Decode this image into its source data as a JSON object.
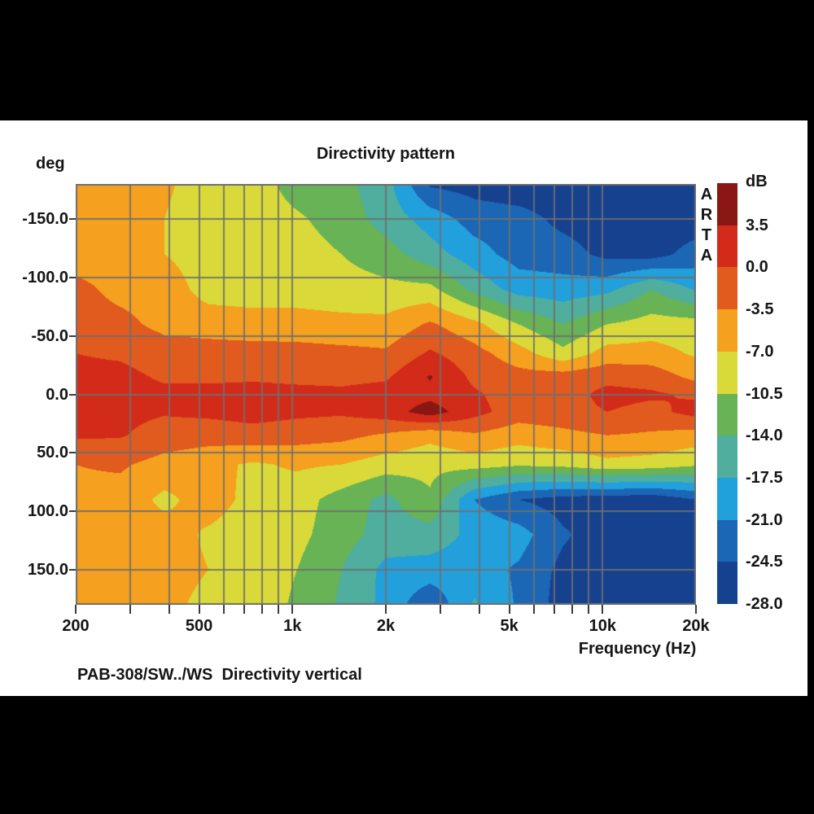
{
  "title": "Directivity pattern",
  "caption": "PAB-308/SW../WS  Directivity vertical",
  "branding": {
    "watermark": "ARTA",
    "watermark_letters": [
      "A",
      "R",
      "T",
      "A"
    ]
  },
  "y_axis": {
    "unit_label": "deg",
    "ticks_deg": [
      -150,
      -100,
      -50,
      0,
      50,
      100,
      150
    ],
    "tick_labels": [
      "-150.0",
      "-100.0",
      "-50.0",
      "0.0",
      "50.0",
      "100.0",
      "150.0"
    ],
    "gridline_degs": [
      -150,
      -100,
      -50,
      0,
      50,
      100,
      150
    ],
    "range_deg": [
      -180,
      180
    ]
  },
  "x_axis": {
    "label": "Frequency (Hz)",
    "tick_labels": [
      "200",
      "500",
      "1k",
      "2k",
      "5k",
      "10k",
      "20k"
    ],
    "tick_freqs": [
      200,
      500,
      1000,
      2000,
      5000,
      10000,
      20000
    ],
    "gridline_freqs": [
      200,
      300,
      400,
      500,
      600,
      700,
      800,
      900,
      1000,
      2000,
      3000,
      4000,
      5000,
      6000,
      7000,
      8000,
      9000,
      10000,
      20000
    ],
    "scale": "log",
    "range_hz": [
      200,
      20000
    ]
  },
  "colorbar": {
    "unit_label": "dB",
    "labels": [
      "3.5",
      "0.0",
      "-3.5",
      "-7.0",
      "-10.5",
      "-14.0",
      "-17.5",
      "-21.0",
      "-24.5",
      "-28.0"
    ],
    "step_db": 3.5
  },
  "colors": {
    "background": "#ffffff",
    "frame": "#000000",
    "grid": "#6f6f6f",
    "tick": "#3c3c3c",
    "text": "#151515"
  },
  "chart_data": {
    "type": "heatmap",
    "title": "Directivity pattern",
    "xlabel": "Frequency (Hz)",
    "ylabel": "deg",
    "x_scale": "log",
    "xlim_hz": [
      200,
      20000
    ],
    "ylim_deg": [
      -180,
      180
    ],
    "levels_db": [
      -28,
      -24.5,
      -21,
      -17.5,
      -14,
      -10.5,
      -7,
      -3.5,
      0,
      3.5
    ],
    "palette": [
      "#15418f",
      "#1b66b5",
      "#22a0dc",
      "#4fae9d",
      "#67b356",
      "#d9da3a",
      "#f5a01f",
      "#e15a1e",
      "#d32b1a",
      "#8a1713"
    ],
    "x_freq_hz": [
      200,
      278,
      386,
      536,
      745,
      1035,
      1438,
      2000,
      2776,
      3857,
      5360,
      7447,
      10347,
      14378,
      20000
    ],
    "y_angle_deg": [
      -180,
      -150,
      -120,
      -90,
      -60,
      -35,
      -15,
      0,
      15,
      35,
      60,
      90,
      120,
      150,
      180
    ],
    "values_db": [
      [
        -5,
        -5,
        -6.5,
        -8.5,
        -8.75,
        -12,
        -13,
        -16,
        -25,
        -26,
        -27,
        -27,
        -27,
        -27,
        -27
      ],
      [
        -5,
        -5,
        -7,
        -8.75,
        -8.75,
        -10,
        -12,
        -15.5,
        -19,
        -22.5,
        -23,
        -25.5,
        -26.5,
        -26.5,
        -26.5
      ],
      [
        -5.2,
        -5.2,
        -7,
        -8.75,
        -8.75,
        -9,
        -10.5,
        -12.5,
        -16,
        -19.5,
        -22.5,
        -23,
        -25.5,
        -26,
        -23
      ],
      [
        -2.5,
        -4.5,
        -5,
        -8.5,
        -8.75,
        -8.75,
        -9,
        -9.5,
        -9.5,
        -15,
        -19,
        -19.5,
        -18.5,
        -14,
        -18
      ],
      [
        -2,
        -2.5,
        -4.5,
        -5,
        -5.5,
        -5.5,
        -6,
        -6,
        -3,
        -6,
        -10.5,
        -14,
        -10.5,
        -9,
        -9
      ],
      [
        0,
        -0.5,
        -1.8,
        -2,
        -2,
        -2.2,
        -2.5,
        -3,
        0.5,
        -2.2,
        -5.5,
        -9.5,
        -5.5,
        -5.5,
        -7.5
      ],
      [
        1,
        1,
        -0.5,
        -0.8,
        -0.5,
        -0.8,
        -1,
        -0.5,
        3.8,
        -0.8,
        -2.2,
        -1.8,
        -1,
        -1.5,
        -4.5
      ],
      [
        1.2,
        1.5,
        0.8,
        1.3,
        1.3,
        1,
        0.8,
        1.5,
        2.5,
        0.5,
        -1.8,
        -1.5,
        1,
        0.5,
        -0.5
      ],
      [
        0.8,
        1,
        0.3,
        0.8,
        1.5,
        0.8,
        0.5,
        1.8,
        5.2,
        1.2,
        -1.8,
        -1.2,
        0,
        -1,
        1.2
      ],
      [
        0.5,
        0.3,
        -1.5,
        -2,
        -1.5,
        -2,
        -2.5,
        -4,
        -6,
        -4,
        -5.5,
        -4.5,
        -3.5,
        -4,
        -5
      ],
      [
        -3.5,
        -3,
        -4.8,
        -6,
        -7.5,
        -6.5,
        -7,
        -8.75,
        -9.5,
        -9,
        -10,
        -9.5,
        -8,
        -8.5,
        -10
      ],
      [
        -4.5,
        -5,
        -7.8,
        -5.5,
        -8,
        -9,
        -12,
        -15,
        -11,
        -21,
        -24.5,
        -26,
        -26.5,
        -27,
        -24.5
      ],
      [
        -5,
        -5,
        -5.5,
        -7.5,
        -8.75,
        -9.5,
        -12.5,
        -15.5,
        -15.5,
        -18.5,
        -19.5,
        -24,
        -26.5,
        -27,
        -27
      ],
      [
        -5,
        -5,
        -5.5,
        -7,
        -8.75,
        -10.5,
        -14,
        -18.5,
        -19,
        -19.5,
        -21.5,
        -25.5,
        -26.5,
        -27,
        -27
      ],
      [
        -5,
        -5.2,
        -6,
        -8,
        -8.75,
        -11,
        -14.5,
        -18.5,
        -24,
        -17,
        -21.5,
        -26,
        -27,
        -27,
        -27
      ]
    ],
    "grid": true,
    "legend_position": "right-colorbar"
  }
}
